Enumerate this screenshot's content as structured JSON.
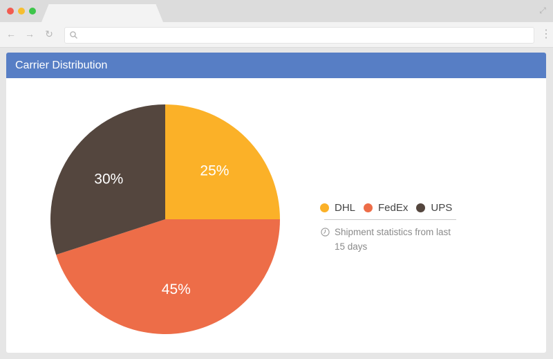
{
  "panel": {
    "title": "Carrier Distribution"
  },
  "chart_data": {
    "type": "pie",
    "title": "",
    "categories": [
      "DHL",
      "FedEx",
      "UPS"
    ],
    "values": [
      25,
      45,
      30
    ],
    "value_labels": [
      "25%",
      "45%",
      "30%"
    ],
    "colors": [
      "#fbb128",
      "#ed6d48",
      "#54463e"
    ],
    "legend_position": "right",
    "note": "Shipment statistics from last 15 days"
  },
  "icons": {
    "back": "arrow-left-icon",
    "forward": "arrow-right-icon",
    "reload": "reload-icon",
    "search": "search-icon",
    "menu": "menu-dots-icon",
    "expand": "expand-icon",
    "clock": "clock-icon"
  }
}
